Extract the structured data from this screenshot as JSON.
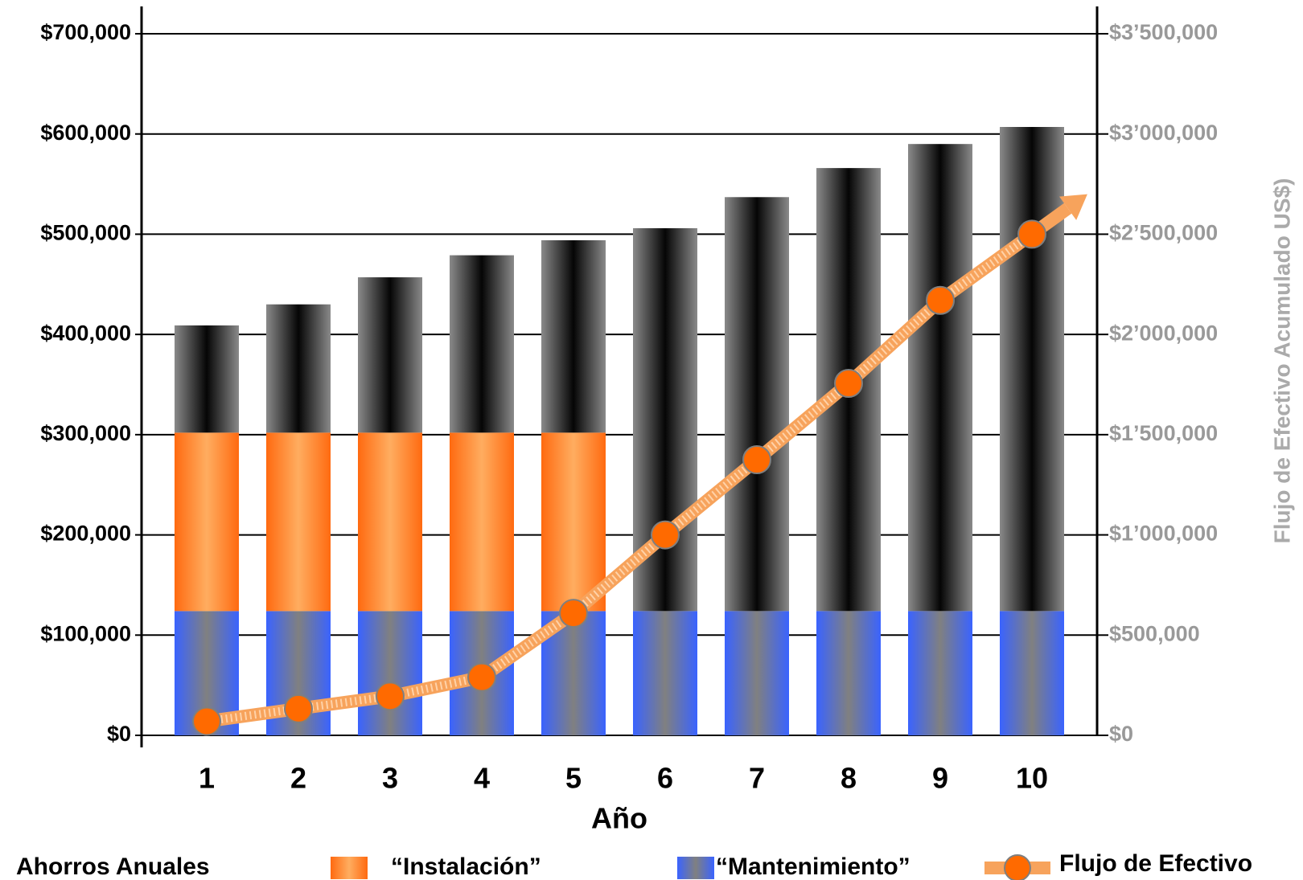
{
  "chart_data": {
    "type": "bar",
    "x_label": "Año",
    "y2_label": "Flujo de Efectivo Acumulado  US$)",
    "legend_title": "Ahorros Anuales",
    "categories": [
      "1",
      "2",
      "3",
      "4",
      "5",
      "6",
      "7",
      "8",
      "9",
      "10"
    ],
    "series": [
      {
        "name": "“Mantenimiento”",
        "color": [
          "#3a63ff",
          "#808080",
          "#3a63ff"
        ],
        "values": [
          124000,
          124000,
          124000,
          124000,
          124000,
          124000,
          124000,
          124000,
          124000,
          124000
        ]
      },
      {
        "name": "“Instalación”",
        "color": [
          "#ff6a10",
          "#ffad60",
          "#ff6a10"
        ],
        "values": [
          178000,
          178000,
          178000,
          178000,
          178000,
          null,
          null,
          null,
          null,
          null
        ]
      },
      {
        "color": [
          "#8a8a8a",
          "#050505",
          "#8a8a8a"
        ],
        "values": [
          107000,
          128000,
          155000,
          177000,
          192000,
          382000,
          413000,
          442000,
          466000,
          483000
        ]
      },
      {
        "name": "Flujo de Efectivo",
        "type": "line",
        "axis": "y2",
        "color": "#f7a35c",
        "marker_color": "#ff6a00",
        "values": [
          70000,
          133000,
          195000,
          290000,
          609000,
          1000000,
          1375000,
          1756000,
          2170000,
          2500000
        ]
      }
    ],
    "ylim": [
      0,
      700000
    ],
    "yticks": [
      {
        "value": 0,
        "label": "$0"
      },
      {
        "value": 100000,
        "label": "$100,000"
      },
      {
        "value": 200000,
        "label": "$200,000"
      },
      {
        "value": 300000,
        "label": "$300,000"
      },
      {
        "value": 400000,
        "label": "$400,000"
      },
      {
        "value": 500000,
        "label": "$500,000"
      },
      {
        "value": 600000,
        "label": "$600,000"
      },
      {
        "value": 700000,
        "label": "$700,000"
      }
    ],
    "y2lim": [
      0,
      3500000
    ],
    "y2ticks": [
      {
        "value": 0,
        "label": "$0"
      },
      {
        "value": 500000,
        "label": "$500,000"
      },
      {
        "value": 1000000,
        "label": "$1’000,000"
      },
      {
        "value": 1500000,
        "label": "$1’500,000"
      },
      {
        "value": 2000000,
        "label": "$2’000,000"
      },
      {
        "value": 2500000,
        "label": "$2’500,000"
      },
      {
        "value": 3000000,
        "label": "$3’000,000"
      },
      {
        "value": 3500000,
        "label": "$3’500,000"
      }
    ],
    "grid": true
  }
}
